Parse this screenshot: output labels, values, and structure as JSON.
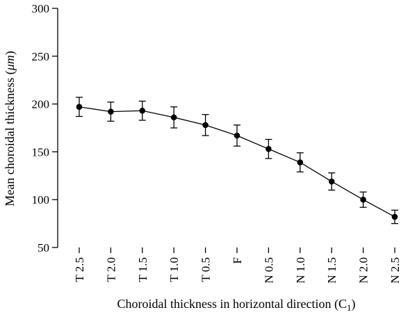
{
  "chart_data": {
    "type": "line",
    "title": "",
    "xlabel": "Choroidal thickness in horizontal direction (C",
    "xlabel_subscript": "1",
    "xlabel_suffix": ")",
    "ylabel": "Mean choroidal thickness (",
    "ylabel_unit": "μm",
    "ylabel_suffix": ")",
    "ylim": [
      50,
      300
    ],
    "yticks": [
      50,
      100,
      150,
      200,
      250,
      300
    ],
    "grid": false,
    "categories": [
      "T 2.5",
      "T 2.0",
      "T 1.5",
      "T 1.0",
      "T 0.5",
      "F",
      "N 0.5",
      "N 1.0",
      "N 1.5",
      "N 2.0",
      "N 2.5"
    ],
    "series": [
      {
        "values": [
          197,
          192,
          193,
          186,
          178,
          167,
          153,
          139,
          119,
          100,
          82
        ],
        "error": [
          10,
          10,
          10,
          11,
          11,
          11,
          10,
          10,
          9,
          8,
          7
        ]
      }
    ]
  }
}
